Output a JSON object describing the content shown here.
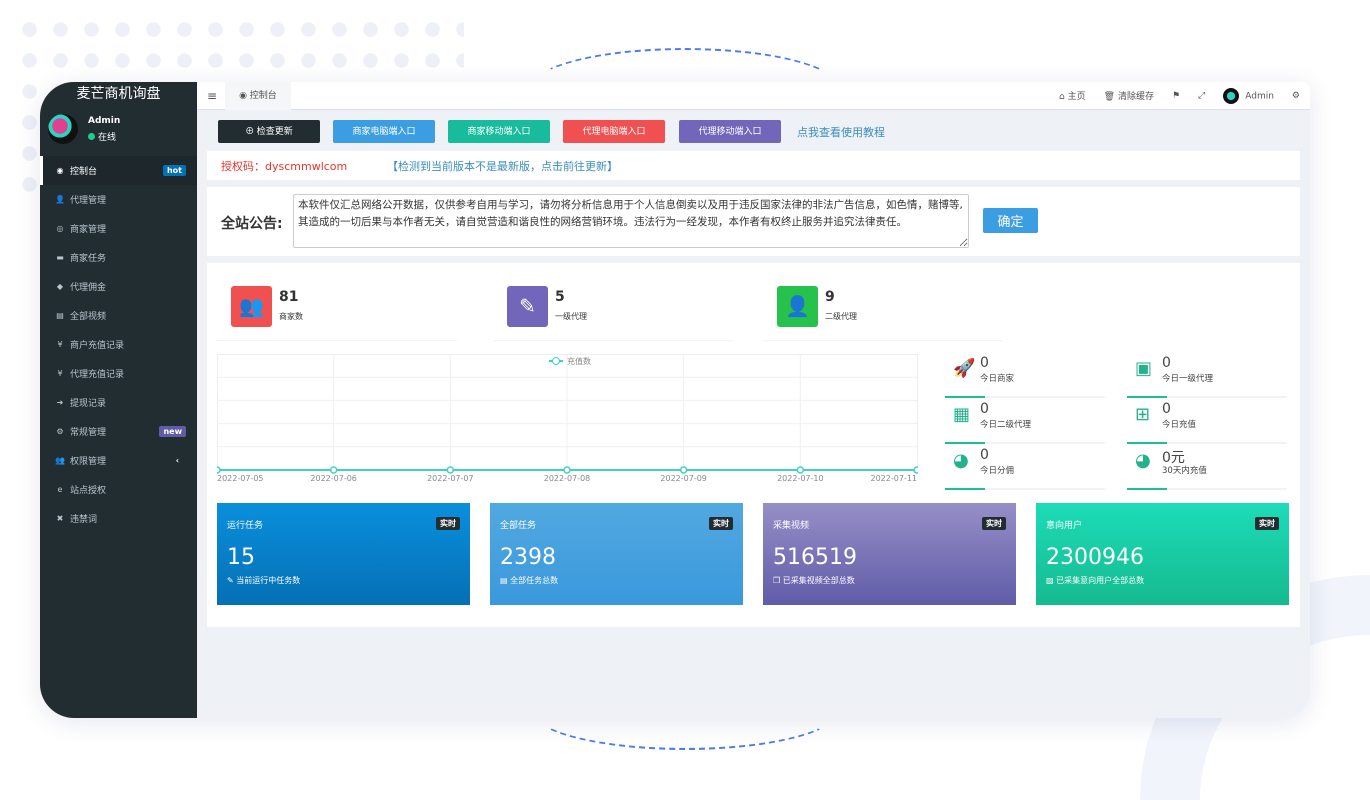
{
  "app": {
    "title": "麦芒商机询盘",
    "user": "Admin",
    "status": "在线"
  },
  "sidebar": {
    "items": [
      {
        "icon": "dashboard-icon",
        "glyph": "◉",
        "label": "控制台",
        "badge": "hot",
        "badge_color": "#0073b7",
        "active": true
      },
      {
        "icon": "user-plus-icon",
        "glyph": "👤",
        "label": "代理管理"
      },
      {
        "icon": "handshake-icon",
        "glyph": "◎",
        "label": "商家管理"
      },
      {
        "icon": "keyboard-icon",
        "glyph": "▬",
        "label": "商家任务"
      },
      {
        "icon": "diamond-icon",
        "glyph": "◆",
        "label": "代理佣金"
      },
      {
        "icon": "file-video-icon",
        "glyph": "▤",
        "label": "全部视频"
      },
      {
        "icon": "yen-icon",
        "glyph": "¥",
        "label": "商户充值记录"
      },
      {
        "icon": "yen-icon",
        "glyph": "¥",
        "label": "代理充值记录"
      },
      {
        "icon": "sign-in-icon",
        "glyph": "➜",
        "label": "提现记录"
      },
      {
        "icon": "cogs-icon",
        "glyph": "⚙",
        "label": "常规管理",
        "badge": "new",
        "badge_color": "#605ca8"
      },
      {
        "icon": "users-icon",
        "glyph": "👥",
        "label": "权限管理",
        "chevron": "‹"
      },
      {
        "icon": "internet-explorer-icon",
        "glyph": "e",
        "label": "站点授权"
      },
      {
        "icon": "close-icon",
        "glyph": "✖",
        "label": "违禁词"
      }
    ]
  },
  "header": {
    "tab": "控制台",
    "home": "主页",
    "clear_cache": "清除缓存",
    "user": "Admin"
  },
  "toolbar": {
    "buttons": [
      {
        "label": "检查更新",
        "color": "#222d32"
      },
      {
        "label": "商家电脑端入口",
        "color": "#3c9ee2"
      },
      {
        "label": "商家移动端入口",
        "color": "#18bc9c"
      },
      {
        "label": "代理电脑端入口",
        "color": "#f05050"
      },
      {
        "label": "代理移动端入口",
        "color": "#7266ba"
      }
    ],
    "tutorial": "点我查看使用教程"
  },
  "auth": {
    "code": "授权码：dyscmmwlcom",
    "update": "【检测到当前版本不是最新版，点击前往更新】"
  },
  "notice": {
    "label": "全站公告:",
    "text": "本软件仅汇总网络公开数据，仅供参考自用与学习，请勿将分析信息用于个人信息倒卖以及用于违反国家法律的非法广告信息，如色情，赌博等, 其造成的一切后果与本作者无关，请自觉营造和谐良性的网络营销环境。违法行为一经发现，本作者有权终止服务并追究法律责任。",
    "confirm": "确定"
  },
  "stats": [
    {
      "value": "81",
      "label": "商家数",
      "color": "#f05050",
      "icon": "users-icon",
      "glyph": "👥"
    },
    {
      "value": "5",
      "label": "一级代理",
      "color": "#7266ba",
      "icon": "magic-icon",
      "glyph": "✎"
    },
    {
      "value": "9",
      "label": "二级代理",
      "color": "#27c24c",
      "icon": "user-icon",
      "glyph": "👤"
    }
  ],
  "chart_data": {
    "type": "line",
    "legend": [
      "充值数"
    ],
    "legend_placement": "top",
    "x": [
      "2022-07-05",
      "2022-07-06",
      "2022-07-07",
      "2022-07-08",
      "2022-07-09",
      "2022-07-10",
      "2022-07-11"
    ],
    "series": [
      {
        "name": "充值数",
        "values": [
          0,
          0,
          0,
          0,
          0,
          0,
          0
        ]
      }
    ],
    "color": "#3fd3bf",
    "grid": true
  },
  "today": [
    {
      "value": "0",
      "label": "今日商家",
      "icon": "rocket-icon",
      "glyph": "🚀"
    },
    {
      "value": "0",
      "label": "今日一级代理",
      "icon": "id-card-icon",
      "glyph": "▣"
    },
    {
      "value": "0",
      "label": "今日二级代理",
      "icon": "calendar-icon",
      "glyph": "▦"
    },
    {
      "value": "0",
      "label": "今日充值",
      "icon": "calendar-plus-icon",
      "glyph": "⊞"
    },
    {
      "value": "0",
      "label": "今日分佣",
      "icon": "user-circle-icon",
      "glyph": "◕"
    },
    {
      "value": "0元",
      "label": "30天内充值",
      "icon": "user-circle-icon",
      "glyph": "◕"
    }
  ],
  "cards": [
    {
      "title": "运行任务",
      "tag": "实时",
      "value": "15",
      "desc": "当前运行中任务数",
      "icon": "magic-icon",
      "glyph": "✎",
      "bg": "linear-gradient(#0a8fdc,#0570b5)"
    },
    {
      "title": "全部任务",
      "tag": "实时",
      "value": "2398",
      "desc": "全部任务总数",
      "icon": "database-icon",
      "glyph": "▤",
      "bg": "linear-gradient(#52a9e0,#3a98dc)"
    },
    {
      "title": "采集视频",
      "tag": "实时",
      "value": "516519",
      "desc": "已采集视频全部总数",
      "icon": "copy-icon",
      "glyph": "❐",
      "bg": "linear-gradient(#968fc7,#605ca8)"
    },
    {
      "title": "意向用户",
      "tag": "实时",
      "value": "2300946",
      "desc": "已采集意向用户全部总数",
      "icon": "image-icon",
      "glyph": "▨",
      "bg": "linear-gradient(#1cdcb8,#16ba8f)"
    }
  ]
}
